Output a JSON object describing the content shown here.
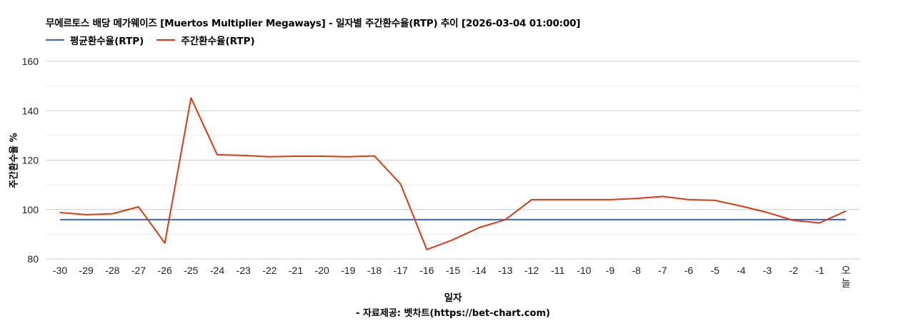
{
  "title": "무에르토스 배당  메가웨이즈 [Muertos Multiplier Megaways] - 일자별 주간환수율(RTP) 추이 [2026-03-04 01:00:00]",
  "legend": [
    {
      "label": "평균환수율(RTP)",
      "color": "#3366cc"
    },
    {
      "label": "주간환수율(RTP)",
      "color": "#dc3912"
    }
  ],
  "axis": {
    "y_title": "주간환수율 %",
    "x_title": "일자"
  },
  "source": "- 자료제공: 벳차트(https://bet-chart.com)",
  "chart_data": {
    "type": "line",
    "title": "무에르토스 배당  메가웨이즈 [Muertos Multiplier Megaways] - 일자별 주간환수율(RTP) 추이 [2026-03-04 01:00:00]",
    "xlabel": "일자",
    "ylabel": "주간환수율 %",
    "ylim": [
      80,
      160
    ],
    "yticks": [
      80,
      100,
      120,
      140,
      160
    ],
    "grid": true,
    "legend_position": "top",
    "categories": [
      "-30",
      "-29",
      "-28",
      "-27",
      "-26",
      "-25",
      "-24",
      "-23",
      "-22",
      "-21",
      "-20",
      "-19",
      "-18",
      "-17",
      "-16",
      "-15",
      "-14",
      "-13",
      "-12",
      "-11",
      "-10",
      "-9",
      "-8",
      "-7",
      "-6",
      "-5",
      "-4",
      "-3",
      "-2",
      "-1",
      "오늘"
    ],
    "series": [
      {
        "name": "평균환수율(RTP)",
        "color": "#3366cc",
        "values": [
          95.9,
          95.9,
          95.9,
          95.9,
          95.9,
          95.9,
          95.9,
          95.9,
          95.9,
          95.9,
          95.9,
          95.9,
          95.9,
          95.9,
          95.9,
          95.9,
          95.9,
          95.9,
          95.9,
          95.9,
          95.9,
          95.9,
          95.9,
          95.9,
          95.9,
          95.9,
          95.9,
          95.9,
          95.9,
          95.9,
          95.9
        ]
      },
      {
        "name": "주간환수율(RTP)",
        "color": "#dc3912",
        "values": [
          98.8,
          97.9,
          98.3,
          101.1,
          86.4,
          145.2,
          122.2,
          121.9,
          121.4,
          121.6,
          121.6,
          121.4,
          121.7,
          110.3,
          83.8,
          87.8,
          92.7,
          95.9,
          104.0,
          104.0,
          104.0,
          104.0,
          104.5,
          105.3,
          104.0,
          103.7,
          101.4,
          98.8,
          95.6,
          94.6,
          99.4
        ]
      }
    ]
  }
}
